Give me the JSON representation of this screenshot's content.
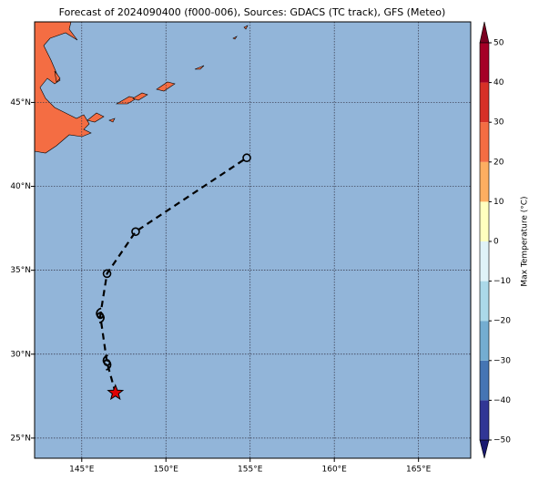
{
  "chart_data": {
    "type": "track-map",
    "title": "Forecast of 2024090400 (f000-006), Sources: GDACS (TC track), GFS (Meteo)",
    "xlim": [
      142.2,
      168.1
    ],
    "ylim": [
      23.8,
      49.8
    ],
    "xticks": [
      {
        "value": 145,
        "label": "145°E"
      },
      {
        "value": 150,
        "label": "150°E"
      },
      {
        "value": 155,
        "label": "155°E"
      },
      {
        "value": 160,
        "label": "160°E"
      },
      {
        "value": 165,
        "label": "165°E"
      }
    ],
    "yticks": [
      {
        "value": 25,
        "label": "25°N"
      },
      {
        "value": 30,
        "label": "30°N"
      },
      {
        "value": 35,
        "label": "35°N"
      },
      {
        "value": 40,
        "label": "40°N"
      },
      {
        "value": 45,
        "label": "45°N"
      }
    ],
    "grid": true,
    "ocean_color": "#92b5d9",
    "track": {
      "lon": [
        147.0,
        146.5,
        146.1,
        146.5,
        148.2,
        154.8
      ],
      "lat": [
        27.7,
        29.5,
        32.3,
        34.8,
        37.3,
        41.7
      ],
      "symbols": [
        "star",
        "storm",
        "storm",
        "circle",
        "circle",
        "circle"
      ],
      "color": "#000000"
    },
    "colorbar": {
      "label": "Max Temperature (°C)",
      "levels": [
        -50,
        -40,
        -30,
        -20,
        -10,
        0,
        10,
        20,
        30,
        40,
        50
      ],
      "colors": [
        "#313695",
        "#4575b4",
        "#74add1",
        "#abd9e9",
        "#e0f3f8",
        "#ffffbf",
        "#fdae61",
        "#f46d43",
        "#d73027",
        "#a50026"
      ],
      "under_color": "#1a1a70",
      "over_color": "#7a0020",
      "ticks": [
        {
          "value": -50,
          "label": "−50"
        },
        {
          "value": -40,
          "label": "−40"
        },
        {
          "value": -30,
          "label": "−30"
        },
        {
          "value": -20,
          "label": "−20"
        },
        {
          "value": -10,
          "label": "−10"
        },
        0,
        10,
        20,
        30,
        40,
        50
      ]
    }
  }
}
